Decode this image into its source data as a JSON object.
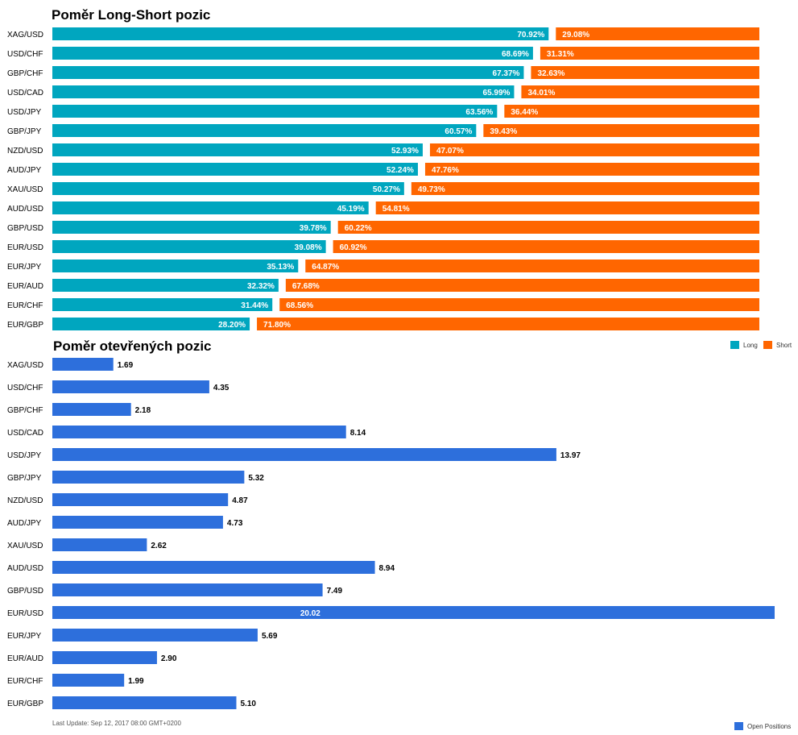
{
  "chart_data": [
    {
      "type": "bar",
      "stacked": true,
      "orientation": "horizontal",
      "title": "Poměr Long-Short pozic",
      "categories": [
        "XAG/USD",
        "USD/CHF",
        "GBP/CHF",
        "USD/CAD",
        "USD/JPY",
        "GBP/JPY",
        "NZD/USD",
        "AUD/JPY",
        "XAU/USD",
        "AUD/USD",
        "GBP/USD",
        "EUR/USD",
        "EUR/JPY",
        "EUR/AUD",
        "EUR/CHF",
        "EUR/GBP"
      ],
      "series": [
        {
          "name": "Long",
          "color": "#00a6bf",
          "values": [
            70.92,
            68.69,
            67.37,
            65.99,
            63.56,
            60.57,
            52.93,
            52.24,
            50.27,
            45.19,
            39.78,
            39.08,
            35.13,
            32.32,
            31.44,
            28.2
          ],
          "labels": [
            "70.92%",
            "68.69%",
            "67.37%",
            "65.99%",
            "63.56%",
            "60.57%",
            "52.93%",
            "52.24%",
            "50.27%",
            "45.19%",
            "39.78%",
            "39.08%",
            "35.13%",
            "32.32%",
            "31.44%",
            "28.20%"
          ]
        },
        {
          "name": "Short",
          "color": "#ff6600",
          "values": [
            29.08,
            31.31,
            32.63,
            34.01,
            36.44,
            39.43,
            47.07,
            47.76,
            49.73,
            54.81,
            60.22,
            60.92,
            64.87,
            67.68,
            68.56,
            71.8
          ],
          "labels": [
            "29.08%",
            "31.31%",
            "32.63%",
            "34.01%",
            "36.44%",
            "39.43%",
            "47.07%",
            "47.76%",
            "49.73%",
            "54.81%",
            "60.22%",
            "60.92%",
            "64.87%",
            "67.68%",
            "68.56%",
            "71.80%"
          ]
        }
      ],
      "xlim": [
        0,
        100
      ],
      "legend_position": "bottom-right",
      "grid": false
    },
    {
      "type": "bar",
      "orientation": "horizontal",
      "title": "Poměr otevřených pozic",
      "categories": [
        "XAG/USD",
        "USD/CHF",
        "GBP/CHF",
        "USD/CAD",
        "USD/JPY",
        "GBP/JPY",
        "NZD/USD",
        "AUD/JPY",
        "XAU/USD",
        "AUD/USD",
        "GBP/USD",
        "EUR/USD",
        "EUR/JPY",
        "EUR/AUD",
        "EUR/CHF",
        "EUR/GBP"
      ],
      "series": [
        {
          "name": "Open Positions",
          "color": "#2d6fdc",
          "values": [
            1.69,
            4.35,
            2.18,
            8.14,
            13.97,
            5.32,
            4.87,
            4.73,
            2.62,
            8.94,
            7.49,
            20.02,
            5.69,
            2.9,
            1.99,
            5.1
          ],
          "labels": [
            "1.69",
            "4.35",
            "2.18",
            "8.14",
            "13.97",
            "5.32",
            "4.87",
            "4.73",
            "2.62",
            "8.94",
            "7.49",
            "20.02",
            "5.69",
            "2.90",
            "1.99",
            "5.10"
          ]
        }
      ],
      "xlim": [
        0,
        20.02
      ],
      "legend_position": "bottom-right",
      "grid": false
    }
  ],
  "footer": {
    "last_update": "Last Update: Sep 12, 2017 08:00 GMT+0200"
  }
}
